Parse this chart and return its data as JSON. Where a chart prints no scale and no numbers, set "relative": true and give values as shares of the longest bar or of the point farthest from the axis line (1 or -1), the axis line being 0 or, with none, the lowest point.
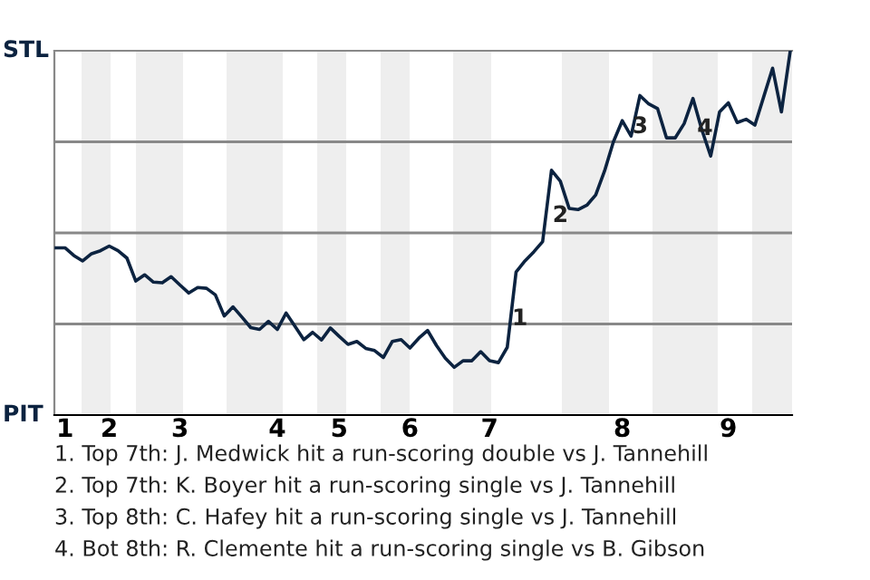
{
  "chart_data": {
    "type": "line",
    "relative": true,
    "tick_labels": "x",
    "marker": "none",
    "line_style": "solid",
    "categories": [
      null,
      "1",
      null,
      null,
      null,
      null,
      "2",
      null,
      null,
      null,
      null,
      null,
      null,
      null,
      "3",
      null,
      null,
      null,
      null,
      null,
      null,
      null,
      null,
      null,
      null,
      "4",
      null,
      null,
      null,
      null,
      null,
      null,
      "5",
      null,
      null,
      null,
      null,
      null,
      null,
      null,
      "6",
      null,
      null,
      null,
      null,
      null,
      null,
      null,
      null,
      "7",
      null,
      null,
      null,
      null,
      null,
      null,
      null,
      null,
      null,
      null,
      null,
      null,
      null,
      null,
      "8",
      null,
      null,
      null,
      null,
      null,
      null,
      null,
      null,
      null,
      null,
      null,
      "9",
      null,
      null,
      null,
      null,
      null,
      null,
      null
    ],
    "series": [
      {
        "color": "#0c2340",
        "values": [
          0.459,
          0.459,
          0.438,
          0.423,
          0.443,
          0.451,
          0.464,
          0.451,
          0.431,
          0.368,
          0.385,
          0.365,
          0.363,
          0.38,
          0.357,
          0.335,
          0.35,
          0.348,
          0.33,
          0.272,
          0.297,
          0.269,
          0.24,
          0.235,
          0.257,
          0.235,
          0.28,
          0.244,
          0.207,
          0.227,
          0.206,
          0.239,
          0.216,
          0.194,
          0.202,
          0.183,
          0.177,
          0.158,
          0.202,
          0.207,
          0.184,
          0.211,
          0.232,
          0.191,
          0.156,
          0.131,
          0.149,
          0.149,
          0.174,
          0.149,
          0.144,
          0.186,
          0.393,
          0.423,
          0.448,
          0.476,
          0.672,
          0.642,
          0.567,
          0.564,
          0.576,
          0.604,
          0.67,
          0.75,
          0.808,
          0.766,
          0.877,
          0.854,
          0.841,
          0.761,
          0.761,
          0.8,
          0.869,
          0.783,
          0.711,
          0.832,
          0.857,
          0.803,
          0.812,
          0.796,
          0.874,
          0.952,
          0.832,
          1.0
        ]
      }
    ],
    "ref_lines": [
      {
        "axis": "y",
        "value": 0.25,
        "color": "#888888"
      },
      {
        "axis": "y",
        "value": 0.5,
        "color": "#888888"
      },
      {
        "axis": "y",
        "value": 0.75,
        "color": "#888888"
      }
    ],
    "annotations": [
      "STL",
      "PIT",
      "1",
      "2",
      "3",
      "4",
      "1. Top 7th: J. Medwick hit a run-scoring double vs J. Tannehill",
      "2. Top 7th: K. Boyer hit a run-scoring single vs J. Tannehill",
      "3. Top 8th: C. Hafey hit a run-scoring single vs J. Tannehill",
      "4. Bot 8th: R. Clemente hit a run-scoring single vs B. Gibson"
    ]
  }
}
